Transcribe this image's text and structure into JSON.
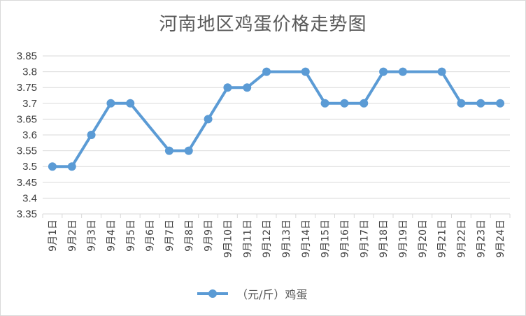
{
  "chart_data": {
    "type": "line",
    "title": "河南地区鸡蛋价格走势图",
    "xlabel": "",
    "ylabel": "",
    "categories": [
      "9月1日",
      "9月2日",
      "9月3日",
      "9月4日",
      "9月5日",
      "9月6日",
      "9月7日",
      "9月8日",
      "9月9日",
      "9月10日",
      "9月11日",
      "9月12日",
      "9月13日",
      "9月14日",
      "9月15日",
      "9月16日",
      "9月17日",
      "9月18日",
      "9月19日",
      "9月20日",
      "9月21日",
      "9月22日",
      "9月23日",
      "9月24日"
    ],
    "series": [
      {
        "name": "（元/斤）鸡蛋",
        "values": [
          3.5,
          3.5,
          3.6,
          3.7,
          3.7,
          null,
          3.55,
          3.55,
          3.65,
          3.75,
          3.75,
          3.8,
          null,
          3.8,
          3.7,
          3.7,
          3.7,
          3.8,
          3.8,
          null,
          3.8,
          3.7,
          3.7,
          3.7
        ],
        "color": "#5b9bd5"
      }
    ],
    "ylim": [
      3.35,
      3.85
    ],
    "yticks": [
      "3.35",
      "3.4",
      "3.45",
      "3.5",
      "3.55",
      "3.6",
      "3.65",
      "3.7",
      "3.75",
      "3.8",
      "3.85"
    ],
    "grid": true,
    "legend": "bottom",
    "connect_gaps": true
  }
}
